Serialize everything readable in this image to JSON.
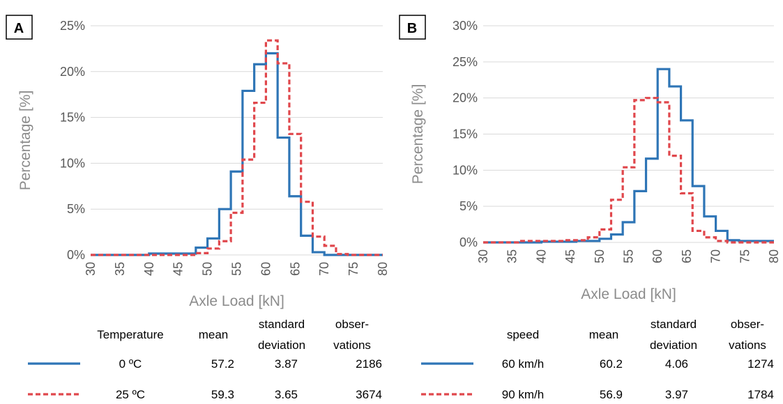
{
  "chart_data": [
    {
      "type": "line",
      "step": true,
      "panel_label": "A",
      "xlabel": "Axle Load [kN]",
      "ylabel": "Percentage [%]",
      "xlim": [
        30,
        80
      ],
      "ylim": [
        0,
        25
      ],
      "x_ticks": [
        "30",
        "35",
        "40",
        "45",
        "50",
        "55",
        "60",
        "65",
        "70",
        "75",
        "80"
      ],
      "y_ticks": [
        "0%",
        "5%",
        "10%",
        "15%",
        "20%",
        "25%"
      ],
      "bin_edges": [
        30,
        32,
        34,
        36,
        38,
        40,
        42,
        44,
        46,
        48,
        50,
        52,
        54,
        56,
        58,
        60,
        62,
        64,
        66,
        68,
        70,
        72,
        74,
        76,
        78,
        80
      ],
      "grid": "horizontal",
      "series": [
        {
          "values": [
            0,
            0,
            0,
            0,
            0,
            0.15,
            0.15,
            0.15,
            0.15,
            0.8,
            1.8,
            5.0,
            9.1,
            17.9,
            20.8,
            22.0,
            12.8,
            6.4,
            2.1,
            0.3,
            0,
            0,
            0,
            0,
            0
          ],
          "color": "#2e75b6",
          "dash": "solid"
        },
        {
          "values": [
            0,
            0,
            0,
            0,
            0,
            0,
            0,
            0,
            0,
            0.2,
            0.7,
            1.5,
            4.6,
            10.4,
            16.6,
            23.4,
            20.9,
            13.2,
            5.8,
            2.0,
            1.0,
            0.1,
            0,
            0,
            0
          ],
          "color": "#e0474c",
          "dash": "dashed"
        }
      ],
      "legend_table": {
        "headers": [
          [
            "Temperature"
          ],
          [
            "mean"
          ],
          [
            "standard",
            "deviation"
          ],
          [
            "obser-",
            "vations"
          ]
        ],
        "rows": [
          {
            "label": "0 ºC",
            "mean": "57.2",
            "sd": "3.87",
            "n": "2186"
          },
          {
            "label": "25 ºC",
            "mean": "59.3",
            "sd": "3.65",
            "n": "3674"
          }
        ]
      }
    },
    {
      "type": "line",
      "step": true,
      "panel_label": "B",
      "xlabel": "Axle Load [kN]",
      "ylabel": "Percentage [%]",
      "xlim": [
        30,
        80
      ],
      "ylim": [
        0,
        30
      ],
      "x_ticks": [
        "30",
        "35",
        "40",
        "45",
        "50",
        "55",
        "60",
        "65",
        "70",
        "75",
        "80"
      ],
      "y_ticks": [
        "0%",
        "5%",
        "10%",
        "15%",
        "20%",
        "25%",
        "30%"
      ],
      "bin_edges": [
        30,
        32,
        34,
        36,
        38,
        40,
        42,
        44,
        46,
        48,
        50,
        52,
        54,
        56,
        58,
        60,
        62,
        64,
        66,
        68,
        70,
        72,
        74,
        76,
        78,
        80
      ],
      "grid": "horizontal",
      "series": [
        {
          "values": [
            0,
            0,
            0,
            0,
            0,
            0.1,
            0.1,
            0.1,
            0.2,
            0.2,
            0.5,
            1.1,
            2.8,
            7.1,
            11.6,
            24.0,
            21.6,
            16.9,
            7.8,
            3.6,
            1.6,
            0.3,
            0.2,
            0.2,
            0.2
          ],
          "color": "#2e75b6",
          "dash": "solid"
        },
        {
          "values": [
            0,
            0,
            0,
            0.2,
            0.2,
            0.2,
            0.2,
            0.3,
            0.3,
            0.7,
            1.8,
            5.9,
            10.4,
            19.7,
            20.0,
            19.4,
            12.0,
            6.8,
            1.6,
            0.7,
            0.2,
            0,
            0,
            0,
            0
          ],
          "color": "#e0474c",
          "dash": "dashed"
        }
      ],
      "legend_table": {
        "headers": [
          [
            "speed"
          ],
          [
            "mean"
          ],
          [
            "standard",
            "deviation"
          ],
          [
            "obser-",
            "vations"
          ]
        ],
        "rows": [
          {
            "label": "60 km/h",
            "mean": "60.2",
            "sd": "4.06",
            "n": "1274"
          },
          {
            "label": "90 km/h",
            "mean": "56.9",
            "sd": "3.97",
            "n": "1784"
          }
        ]
      }
    }
  ]
}
